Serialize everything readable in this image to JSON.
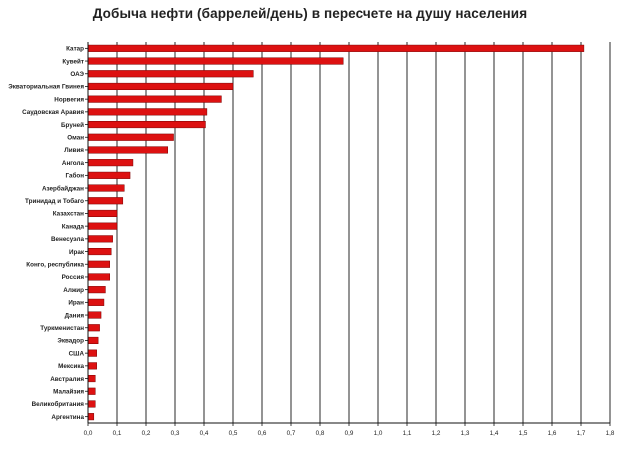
{
  "chart_data": {
    "type": "bar",
    "orientation": "horizontal",
    "title": "Добыча нефти (баррелей/день) в пересчете на душу населения",
    "xlabel": "",
    "ylabel": "",
    "xlim": [
      0,
      1.8
    ],
    "grid": "vertical",
    "legend": "none",
    "bar_color": "#dd1111",
    "categories": [
      "Катар",
      "Кувейт",
      "ОАЭ",
      "Экваториальная Гвинея",
      "Норвегия",
      "Саудовская Аравия",
      "Бруней",
      "Оман",
      "Ливия",
      "Ангола",
      "Габон",
      "Азербайджан",
      "Тринидад и Тобаго",
      "Казахстан",
      "Канада",
      "Венесуэла",
      "Ирак",
      "Конго, республика",
      "Россия",
      "Алжир",
      "Иран",
      "Дания",
      "Туркменистан",
      "Эквадор",
      "США",
      "Мексика",
      "Австралия",
      "Малайзия",
      "Великобритания",
      "Аргентина"
    ],
    "values": [
      1.71,
      0.88,
      0.57,
      0.5,
      0.46,
      0.41,
      0.405,
      0.295,
      0.275,
      0.155,
      0.145,
      0.125,
      0.12,
      0.1,
      0.1,
      0.085,
      0.08,
      0.075,
      0.075,
      0.06,
      0.055,
      0.045,
      0.04,
      0.035,
      0.03,
      0.03,
      0.025,
      0.025,
      0.025,
      0.02
    ],
    "ticks": [
      "0,0",
      "0,1",
      "0,2",
      "0,3",
      "0,4",
      "0,5",
      "0,6",
      "0,7",
      "0,8",
      "0,9",
      "1,0",
      "1,1",
      "1,2",
      "1,3",
      "1,4",
      "1,5",
      "1,6",
      "1,7",
      "1,8"
    ]
  }
}
